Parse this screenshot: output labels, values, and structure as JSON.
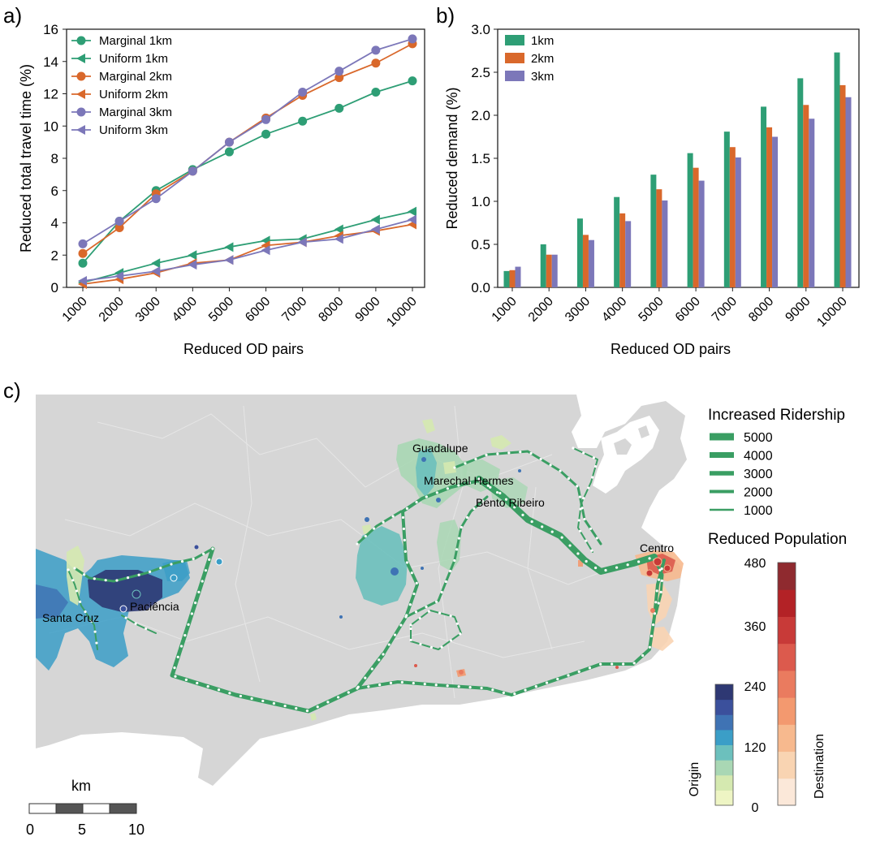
{
  "panels": {
    "a": "a)",
    "b": "b)",
    "c": "c)"
  },
  "chart_data": [
    {
      "type": "line",
      "panel": "a)",
      "xlabel": "Reduced OD pairs",
      "ylabel": "Reduced total travel time (%)",
      "categories": [
        "1000",
        "2000",
        "3000",
        "4000",
        "5000",
        "6000",
        "7000",
        "8000",
        "9000",
        "10000"
      ],
      "yticks": [
        "0",
        "2",
        "4",
        "6",
        "8",
        "10",
        "12",
        "14",
        "16"
      ],
      "ylim": [
        0,
        16
      ],
      "grid": false,
      "legend_position": "top-left",
      "series": [
        {
          "name": "Marginal 1km",
          "marker": "circle",
          "color": "#2e9e75",
          "values": [
            1.5,
            4.1,
            6.0,
            7.3,
            8.4,
            9.5,
            10.3,
            11.1,
            12.1,
            12.8
          ]
        },
        {
          "name": "Uniform 1km",
          "marker": "triangle-left",
          "color": "#2e9e75",
          "values": [
            0.3,
            0.9,
            1.5,
            2.0,
            2.5,
            2.9,
            3.0,
            3.6,
            4.2,
            4.7
          ]
        },
        {
          "name": "Marginal 2km",
          "marker": "circle",
          "color": "#d9682b",
          "values": [
            2.1,
            3.7,
            5.8,
            7.2,
            9.0,
            10.5,
            11.9,
            13.0,
            13.9,
            15.1
          ]
        },
        {
          "name": "Uniform 2km",
          "marker": "triangle-left",
          "color": "#d9682b",
          "values": [
            0.2,
            0.5,
            0.9,
            1.5,
            1.7,
            2.6,
            2.8,
            3.2,
            3.5,
            3.9
          ]
        },
        {
          "name": "Marginal 3km",
          "marker": "circle",
          "color": "#7c77b9",
          "values": [
            2.7,
            4.1,
            5.5,
            7.2,
            9.0,
            10.4,
            12.1,
            13.4,
            14.7,
            15.4
          ]
        },
        {
          "name": "Uniform 3km",
          "marker": "triangle-left",
          "color": "#7c77b9",
          "values": [
            0.4,
            0.7,
            1.0,
            1.4,
            1.7,
            2.3,
            2.8,
            3.0,
            3.6,
            4.2
          ]
        }
      ]
    },
    {
      "type": "bar",
      "panel": "b)",
      "xlabel": "Reduced OD pairs",
      "ylabel": "Reduced demand (%)",
      "categories": [
        "1000",
        "2000",
        "3000",
        "4000",
        "5000",
        "6000",
        "7000",
        "8000",
        "9000",
        "10000"
      ],
      "yticks": [
        "0.0",
        "0.5",
        "1.0",
        "1.5",
        "2.0",
        "2.5",
        "3.0"
      ],
      "ylim": [
        0,
        3.0
      ],
      "grid": false,
      "legend_position": "top-left",
      "series": [
        {
          "name": "1km",
          "color": "#2e9e75",
          "values": [
            0.19,
            0.5,
            0.8,
            1.05,
            1.31,
            1.56,
            1.81,
            2.1,
            2.43,
            2.73
          ]
        },
        {
          "name": "2km",
          "color": "#d9682b",
          "values": [
            0.2,
            0.38,
            0.61,
            0.86,
            1.14,
            1.39,
            1.63,
            1.86,
            2.12,
            2.35
          ]
        },
        {
          "name": "3km",
          "color": "#7c77b9",
          "values": [
            0.24,
            0.38,
            0.55,
            0.77,
            1.01,
            1.24,
            1.51,
            1.75,
            1.96,
            2.21
          ]
        }
      ]
    },
    {
      "type": "map",
      "panel": "c)",
      "ridership_legend": {
        "title": "Increased Ridership",
        "entries": [
          "5000",
          "4000",
          "3000",
          "2000",
          "1000"
        ],
        "color": "#3a9e63"
      },
      "population_legend": {
        "title": "Reduced Population",
        "origin_label": "Origin",
        "destination_label": "Destination",
        "origin_ticks": [
          "0",
          "120",
          "240"
        ],
        "destination_ticks": [
          "360",
          "480"
        ],
        "origin_colors": [
          "#eef5c4",
          "#d5e9b0",
          "#a9d7b4",
          "#6cc0bd",
          "#3b9ec7",
          "#3f73b4",
          "#3b509c",
          "#2e3873"
        ],
        "destination_colors": [
          "#fbe8d9",
          "#f9d4b2",
          "#f7b98e",
          "#f3996f",
          "#ea7b5f",
          "#dc5a4d",
          "#c83a38",
          "#b32226",
          "#8f2a2f"
        ]
      },
      "places": [
        "Guadalupe",
        "Marechal Hermes",
        "Bento Ribeiro",
        "Centro",
        "Paciência",
        "Santa Cruz"
      ],
      "scale_bar": {
        "unit": "km",
        "ticks": [
          "0",
          "5",
          "10"
        ]
      }
    }
  ]
}
